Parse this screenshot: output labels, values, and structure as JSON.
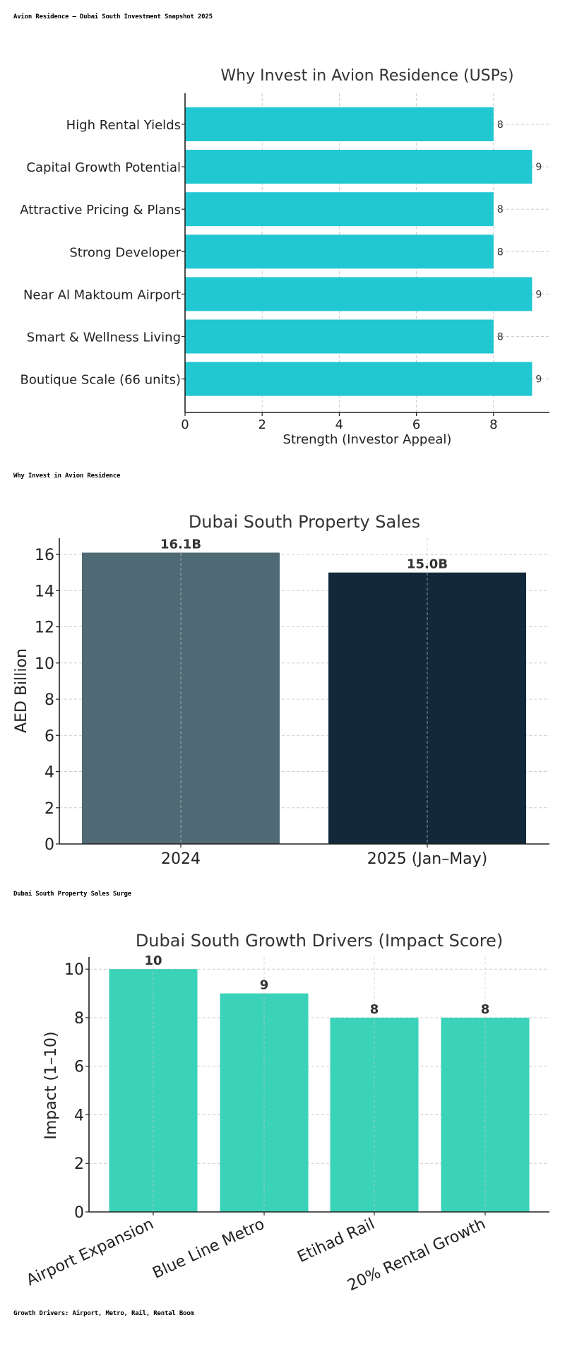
{
  "header": {
    "title": "Avion Residence – Dubai South Investment Snapshot 2025"
  },
  "captions": {
    "usps": "Why Invest in Avion Residence",
    "sales": "Dubai South Property Sales Surge",
    "drivers": "Growth Drivers: Airport, Metro, Rail, Rental Boom"
  },
  "colors": {
    "usp_bar": "#21c8d2",
    "sales_2024": "#4f6a75",
    "sales_2025": "#12293b",
    "driver_bar": "#3ad2b8"
  },
  "chart_data": [
    {
      "type": "bar",
      "orientation": "horizontal",
      "title": "Why Invest in Avion Residence (USPs)",
      "xlabel": "Strength (Investor Appeal)",
      "ylabel": "",
      "categories": [
        "High Rental Yields",
        "Capital Growth Potential",
        "Attractive Pricing & Plans",
        "Strong Developer",
        "Near Al Maktoum Airport",
        "Smart & Wellness Living",
        "Boutique Scale (66 units)"
      ],
      "values": [
        8,
        9,
        8,
        8,
        9,
        8,
        9
      ],
      "value_labels": [
        "8",
        "9",
        "8",
        "8",
        "9",
        "8",
        "9"
      ],
      "xticks": [
        "0",
        "2",
        "4",
        "6",
        "8"
      ],
      "xlim": [
        0,
        9.45
      ],
      "grid": true
    },
    {
      "type": "bar",
      "title": "Dubai South Property Sales",
      "xlabel": "",
      "ylabel": "AED Billion",
      "categories": [
        "2024",
        "2025 (Jan–May)"
      ],
      "values": [
        16.1,
        15.0
      ],
      "value_labels": [
        "16.1B",
        "15.0B"
      ],
      "yticks": [
        "0",
        "2",
        "4",
        "6",
        "8",
        "10",
        "12",
        "14",
        "16"
      ],
      "ylim": [
        0,
        16.9
      ],
      "grid": true
    },
    {
      "type": "bar",
      "title": "Dubai South Growth Drivers (Impact Score)",
      "xlabel": "",
      "ylabel": "Impact (1–10)",
      "categories": [
        "Airport Expansion",
        "Blue Line Metro",
        "Etihad Rail",
        "20% Rental Growth"
      ],
      "values": [
        10,
        9,
        8,
        8
      ],
      "value_labels": [
        "10",
        "9",
        "8",
        "8"
      ],
      "yticks": [
        "0",
        "2",
        "4",
        "6",
        "8",
        "10"
      ],
      "ylim": [
        0,
        10.5
      ],
      "grid": true
    }
  ]
}
